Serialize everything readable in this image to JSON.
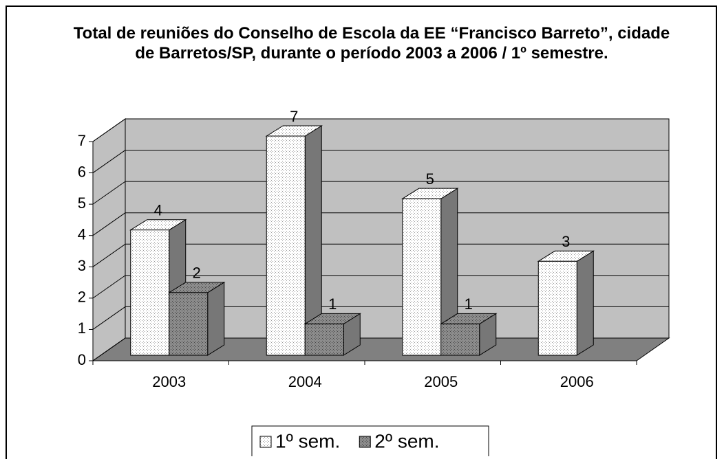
{
  "chart_data": {
    "type": "bar3d",
    "title": "Total de reuniões do Conselho de Escola da EE “Francisco Barreto”, cidade de Barretos/SP, durante o período 2003 a 2006 / 1º semestre.",
    "categories": [
      "2003",
      "2004",
      "2005",
      "2006"
    ],
    "series": [
      {
        "name": "1º sem.",
        "color": "#ffffff",
        "values": [
          4,
          7,
          5,
          3
        ]
      },
      {
        "name": "2º sem.",
        "color": "#8c8c8c",
        "values": [
          2,
          1,
          1,
          null
        ]
      }
    ],
    "ylim": [
      0,
      7
    ],
    "yticks": [
      0,
      1,
      2,
      3,
      4,
      5,
      6,
      7
    ],
    "grid": true,
    "legend": "bottom"
  }
}
